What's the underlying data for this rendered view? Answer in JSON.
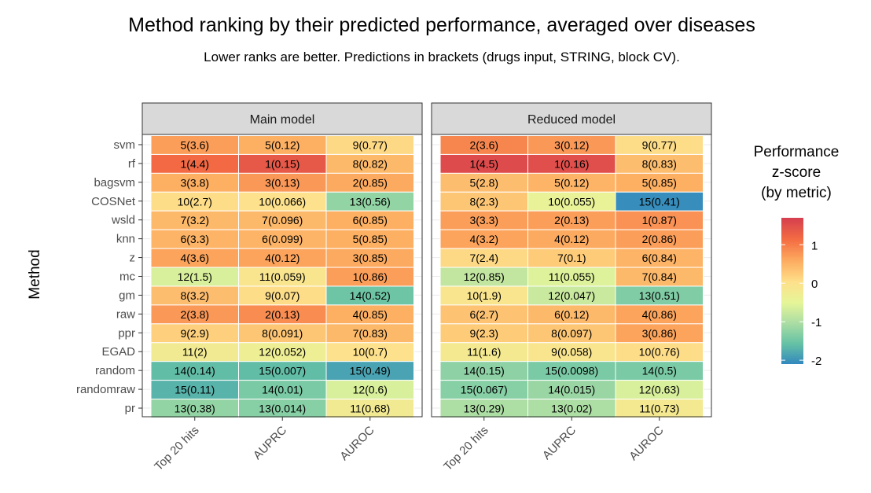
{
  "chart_data": {
    "type": "heatmap",
    "title": "Method ranking by their predicted performance, averaged over diseases",
    "subtitle": "Lower ranks are better. Predictions in brackets (drugs input, STRING, block CV).",
    "ylabel": "Method",
    "rows": [
      "svm",
      "rf",
      "bagsvm",
      "COSNet",
      "wsld",
      "knn",
      "z",
      "mc",
      "gm",
      "raw",
      "ppr",
      "EGAD",
      "random",
      "randomraw",
      "pr"
    ],
    "columns": [
      "Top 20 hits",
      "AUPRC",
      "AUROC"
    ],
    "legend": {
      "title_lines": [
        "Performance",
        "z-score",
        "(by metric)"
      ],
      "ticks": [
        1,
        0,
        -1,
        -2
      ],
      "tick_labels": [
        "1",
        "0",
        "-1",
        "-2"
      ],
      "range": [
        -2.1,
        1.7
      ],
      "placement": "right"
    },
    "colors": {
      "scale": [
        "#3288bd",
        "#66c2a5",
        "#abdda4",
        "#e6f598",
        "#fee08b",
        "#fdae61",
        "#f46d43",
        "#d53e4f"
      ],
      "strip_fill": "#d9d9d9",
      "panel_border": "#333333"
    },
    "facets": [
      {
        "name": "Main model",
        "cells": [
          {
            "label": "5(3.6)",
            "z": 0.75
          },
          {
            "label": "5(0.12)",
            "z": 0.6
          },
          {
            "label": "9(0.77)",
            "z": 0.15
          },
          {
            "label": "1(4.4)",
            "z": 1.2
          },
          {
            "label": "1(0.15)",
            "z": 1.4
          },
          {
            "label": "8(0.82)",
            "z": 0.5
          },
          {
            "label": "3(3.8)",
            "z": 0.6
          },
          {
            "label": "3(0.13)",
            "z": 0.8
          },
          {
            "label": "2(0.85)",
            "z": 0.65
          },
          {
            "label": "10(2.7)",
            "z": 0.1
          },
          {
            "label": "10(0.066)",
            "z": 0.05
          },
          {
            "label": "13(0.56)",
            "z": -1.2
          },
          {
            "label": "7(3.2)",
            "z": 0.5
          },
          {
            "label": "7(0.096)",
            "z": 0.5
          },
          {
            "label": "6(0.85)",
            "z": 0.6
          },
          {
            "label": "6(3.3)",
            "z": 0.55
          },
          {
            "label": "6(0.099)",
            "z": 0.55
          },
          {
            "label": "5(0.85)",
            "z": 0.6
          },
          {
            "label": "4(3.6)",
            "z": 0.7
          },
          {
            "label": "4(0.12)",
            "z": 0.7
          },
          {
            "label": "3(0.85)",
            "z": 0.65
          },
          {
            "label": "12(1.5)",
            "z": -0.6
          },
          {
            "label": "11(0.059)",
            "z": -0.05
          },
          {
            "label": "1(0.86)",
            "z": 0.75
          },
          {
            "label": "8(3.2)",
            "z": 0.45
          },
          {
            "label": "9(0.07)",
            "z": 0.1
          },
          {
            "label": "14(0.52)",
            "z": -1.5
          },
          {
            "label": "2(3.8)",
            "z": 0.8
          },
          {
            "label": "2(0.13)",
            "z": 0.9
          },
          {
            "label": "4(0.85)",
            "z": 0.6
          },
          {
            "label": "9(2.9)",
            "z": 0.25
          },
          {
            "label": "8(0.091)",
            "z": 0.35
          },
          {
            "label": "7(0.83)",
            "z": 0.5
          },
          {
            "label": "11(2)",
            "z": -0.2
          },
          {
            "label": "12(0.052)",
            "z": -0.3
          },
          {
            "label": "10(0.7)",
            "z": 0.05
          },
          {
            "label": "14(0.14)",
            "z": -1.6
          },
          {
            "label": "15(0.007)",
            "z": -1.6
          },
          {
            "label": "15(0.49)",
            "z": -1.85
          },
          {
            "label": "15(0.11)",
            "z": -1.7
          },
          {
            "label": "14(0.01)",
            "z": -1.4
          },
          {
            "label": "12(0.6)",
            "z": -0.6
          },
          {
            "label": "13(0.38)",
            "z": -1.2
          },
          {
            "label": "13(0.014)",
            "z": -1.3
          },
          {
            "label": "11(0.68)",
            "z": -0.2
          }
        ]
      },
      {
        "name": "Reduced model",
        "cells": [
          {
            "label": "2(3.6)",
            "z": 0.95
          },
          {
            "label": "3(0.12)",
            "z": 0.8
          },
          {
            "label": "9(0.77)",
            "z": 0.1
          },
          {
            "label": "1(4.5)",
            "z": 1.55
          },
          {
            "label": "1(0.16)",
            "z": 1.5
          },
          {
            "label": "8(0.83)",
            "z": 0.45
          },
          {
            "label": "5(2.8)",
            "z": 0.45
          },
          {
            "label": "5(0.12)",
            "z": 0.55
          },
          {
            "label": "5(0.85)",
            "z": 0.6
          },
          {
            "label": "8(2.3)",
            "z": 0.35
          },
          {
            "label": "10(0.055)",
            "z": -0.4
          },
          {
            "label": "15(0.41)",
            "z": -2.05
          },
          {
            "label": "3(3.3)",
            "z": 0.75
          },
          {
            "label": "2(0.13)",
            "z": 0.75
          },
          {
            "label": "1(0.87)",
            "z": 0.85
          },
          {
            "label": "4(3.2)",
            "z": 0.7
          },
          {
            "label": "4(0.12)",
            "z": 0.65
          },
          {
            "label": "2(0.86)",
            "z": 0.75
          },
          {
            "label": "7(2.4)",
            "z": 0.15
          },
          {
            "label": "7(0.1)",
            "z": 0.3
          },
          {
            "label": "6(0.84)",
            "z": 0.55
          },
          {
            "label": "12(0.85)",
            "z": -0.8
          },
          {
            "label": "11(0.055)",
            "z": -0.55
          },
          {
            "label": "7(0.84)",
            "z": 0.5
          },
          {
            "label": "10(1.9)",
            "z": -0.05
          },
          {
            "label": "12(0.047)",
            "z": -0.75
          },
          {
            "label": "13(0.51)",
            "z": -1.35
          },
          {
            "label": "6(2.7)",
            "z": 0.4
          },
          {
            "label": "6(0.12)",
            "z": 0.5
          },
          {
            "label": "4(0.86)",
            "z": 0.7
          },
          {
            "label": "9(2.3)",
            "z": 0.3
          },
          {
            "label": "8(0.097)",
            "z": 0.35
          },
          {
            "label": "3(0.86)",
            "z": 0.7
          },
          {
            "label": "11(1.6)",
            "z": -0.15
          },
          {
            "label": "9(0.058)",
            "z": -0.05
          },
          {
            "label": "10(0.76)",
            "z": 0.1
          },
          {
            "label": "14(0.15)",
            "z": -1.25
          },
          {
            "label": "15(0.0098)",
            "z": -1.4
          },
          {
            "label": "14(0.5)",
            "z": -1.4
          },
          {
            "label": "15(0.067)",
            "z": -1.3
          },
          {
            "label": "14(0.015)",
            "z": -1.15
          },
          {
            "label": "12(0.63)",
            "z": -0.6
          },
          {
            "label": "13(0.29)",
            "z": -1.0
          },
          {
            "label": "13(0.02)",
            "z": -1.0
          },
          {
            "label": "11(0.73)",
            "z": -0.15
          }
        ]
      }
    ]
  }
}
